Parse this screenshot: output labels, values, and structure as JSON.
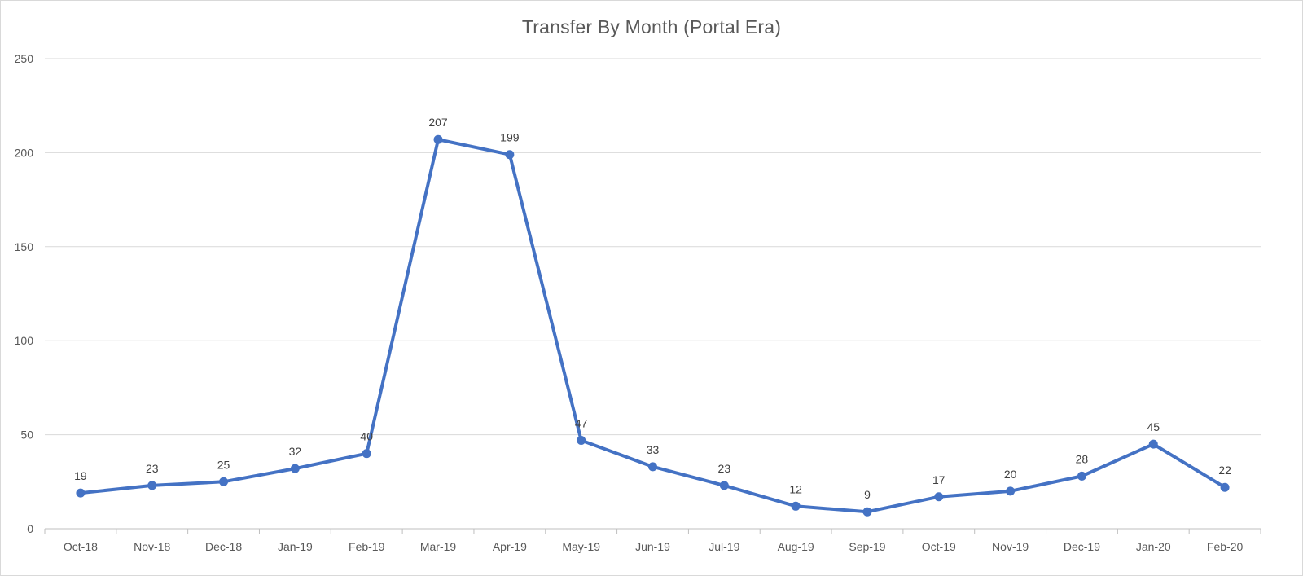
{
  "chart_data": {
    "type": "line",
    "title": "Transfer By Month (Portal Era)",
    "xlabel": "",
    "ylabel": "",
    "categories": [
      "Oct-18",
      "Nov-18",
      "Dec-18",
      "Jan-19",
      "Feb-19",
      "Mar-19",
      "Apr-19",
      "May-19",
      "Jun-19",
      "Jul-19",
      "Aug-19",
      "Sep-19",
      "Oct-19",
      "Nov-19",
      "Dec-19",
      "Jan-20",
      "Feb-20"
    ],
    "series": [
      {
        "values": [
          19,
          23,
          25,
          32,
          40,
          207,
          199,
          47,
          33,
          23,
          12,
          9,
          17,
          20,
          28,
          45,
          22
        ],
        "color": "#4472c4"
      }
    ],
    "ylim": [
      0,
      250
    ],
    "yticks": [
      0,
      50,
      100,
      150,
      200,
      250
    ],
    "grid": true,
    "legend": "none",
    "data_labels": true,
    "markers": true
  }
}
